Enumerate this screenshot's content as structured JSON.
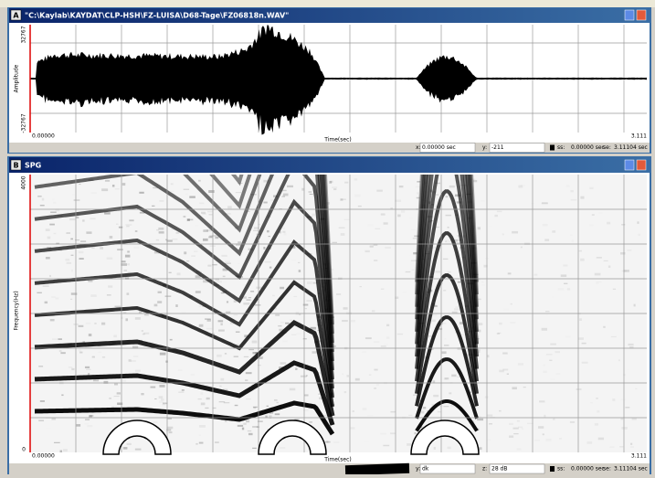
{
  "windows": [
    {
      "label": "A",
      "title": "\"C:\\Kaylab\\KAYDAT\\CLP-HSH\\FZ-LUISA\\D68-Tage\\FZ06818n.WAV\"",
      "y_axis": {
        "top": "32767",
        "label": "Amplitude",
        "bottom": "-32767"
      },
      "x_axis": {
        "start": "0.00000",
        "label": "Time(sec)",
        "end": "3.111"
      },
      "status": [
        {
          "label": "x:",
          "value": "0.00000 sec"
        },
        {
          "label": "y:",
          "value": "-211"
        },
        {
          "label": "ss:",
          "value": "0.00000 sec"
        },
        {
          "label": "se:",
          "value": "3.11104 sec"
        }
      ]
    },
    {
      "label": "B",
      "title": "SPG",
      "y_axis": {
        "top": "4000",
        "label": "Frequency(Hz)",
        "bottom": "0"
      },
      "x_axis": {
        "start": "0.00000",
        "label": "Time(sec)",
        "end": "3.111"
      },
      "status": [
        {
          "label": "y:",
          "value": "dk"
        },
        {
          "label": "z:",
          "value": "28 dB"
        },
        {
          "label": "ss:",
          "value": "0.00000 sec"
        },
        {
          "label": "se:",
          "value": "3.11104 sec"
        }
      ]
    }
  ]
}
